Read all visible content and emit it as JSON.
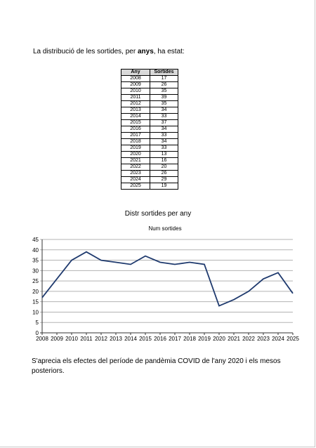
{
  "intro": {
    "before": "La distribució de les sortides, per ",
    "bold": "anys",
    "after": ", ha estat:"
  },
  "table": {
    "headers": [
      "Any",
      "Sortides"
    ],
    "rows": [
      [
        "2008",
        "17"
      ],
      [
        "2009",
        "26"
      ],
      [
        "2010",
        "35"
      ],
      [
        "2011",
        "39"
      ],
      [
        "2012",
        "35"
      ],
      [
        "2013",
        "34"
      ],
      [
        "2014",
        "33"
      ],
      [
        "2015",
        "37"
      ],
      [
        "2016",
        "34"
      ],
      [
        "2017",
        "33"
      ],
      [
        "2018",
        "34"
      ],
      [
        "2019",
        "33"
      ],
      [
        "2020",
        "13"
      ],
      [
        "2021",
        "16"
      ],
      [
        "2022",
        "20"
      ],
      [
        "2023",
        "26"
      ],
      [
        "2024",
        "29"
      ],
      [
        "2025",
        "19"
      ]
    ]
  },
  "chart_data": {
    "type": "line",
    "title": "Distr sortides per any",
    "subtitle": "Num sortides",
    "x": [
      "2008",
      "2009",
      "2010",
      "2011",
      "2012",
      "2013",
      "2014",
      "2015",
      "2016",
      "2017",
      "2018",
      "2019",
      "2020",
      "2021",
      "2022",
      "2023",
      "2024",
      "2025"
    ],
    "series": [
      {
        "values": [
          17,
          26,
          35,
          39,
          35,
          34,
          33,
          37,
          34,
          33,
          34,
          33,
          13,
          16,
          20,
          26,
          29,
          19
        ]
      }
    ],
    "ylim": [
      0,
      45
    ],
    "yticks": [
      0,
      5,
      10,
      15,
      20,
      25,
      30,
      35,
      40,
      45
    ],
    "grid": true,
    "color": "#1f3a6e"
  },
  "outro": "S'aprecia els efectes del període de pandèmia COVID de l'any 2020 i els mesos posteriors."
}
